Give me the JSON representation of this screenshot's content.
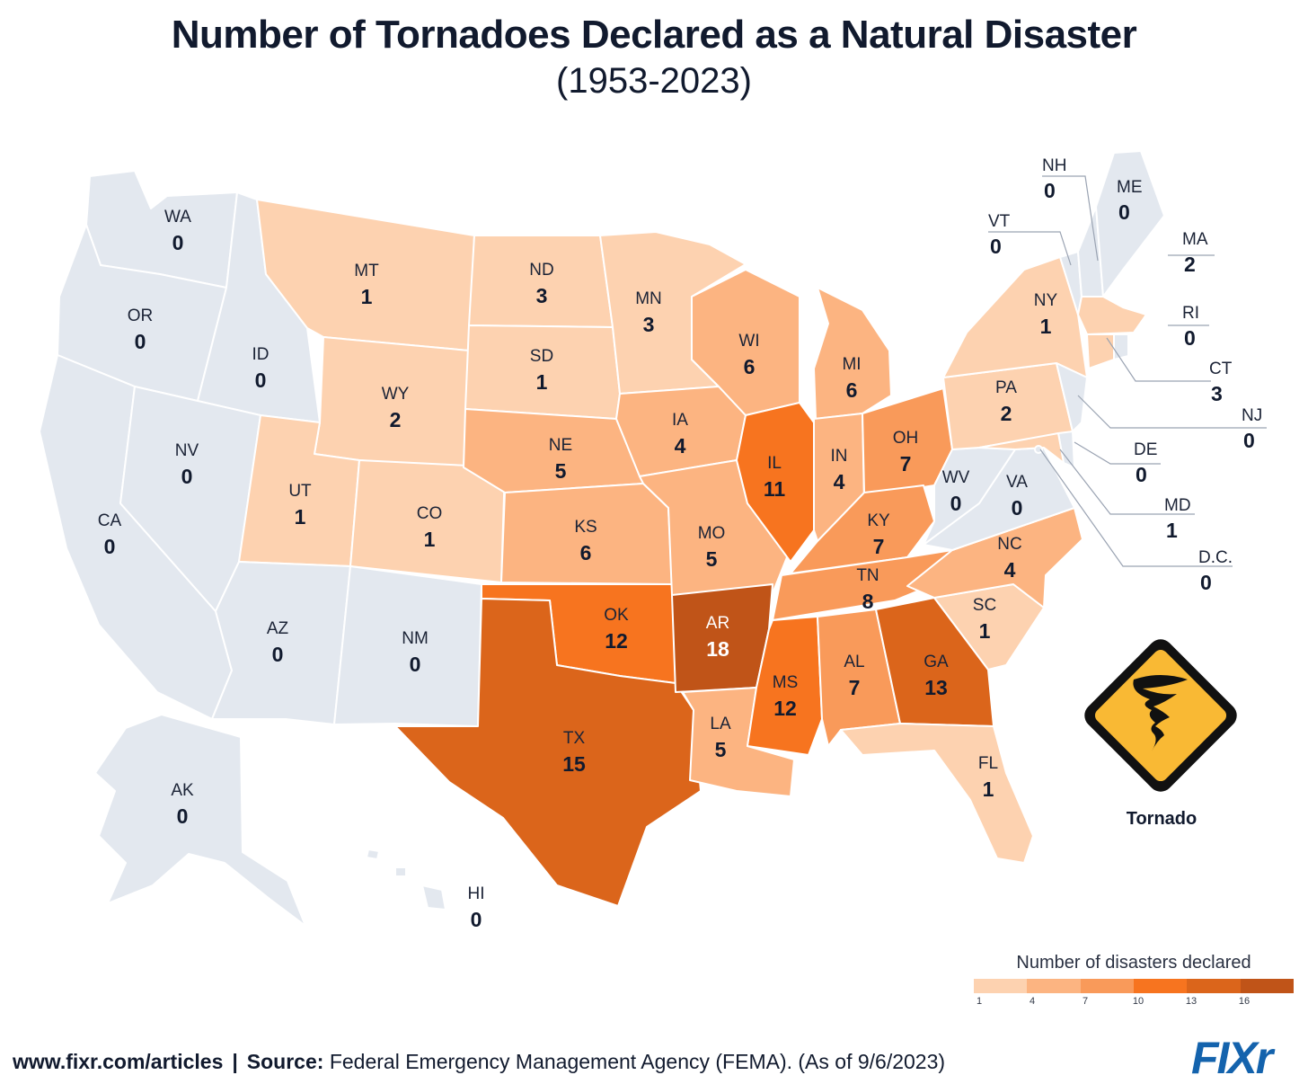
{
  "header": {
    "title": "Number of Tornadoes Declared as a Natural Disaster",
    "subtitle": "(1953-2023)"
  },
  "colors": {
    "zero": "#e3e8ef",
    "scale": [
      "#fdd2b0",
      "#fcb481",
      "#f99a5a",
      "#f7741f",
      "#db651b",
      "#c05418"
    ],
    "border": "#ffffff"
  },
  "states": {
    "WA": {
      "abbr": "WA",
      "value": "0"
    },
    "OR": {
      "abbr": "OR",
      "value": "0"
    },
    "CA": {
      "abbr": "CA",
      "value": "0"
    },
    "ID": {
      "abbr": "ID",
      "value": "0"
    },
    "NV": {
      "abbr": "NV",
      "value": "0"
    },
    "MT": {
      "abbr": "MT",
      "value": "1"
    },
    "WY": {
      "abbr": "WY",
      "value": "2"
    },
    "UT": {
      "abbr": "UT",
      "value": "1"
    },
    "CO": {
      "abbr": "CO",
      "value": "1"
    },
    "AZ": {
      "abbr": "AZ",
      "value": "0"
    },
    "NM": {
      "abbr": "NM",
      "value": "0"
    },
    "ND": {
      "abbr": "ND",
      "value": "3"
    },
    "SD": {
      "abbr": "SD",
      "value": "1"
    },
    "NE": {
      "abbr": "NE",
      "value": "5"
    },
    "KS": {
      "abbr": "KS",
      "value": "6"
    },
    "OK": {
      "abbr": "OK",
      "value": "12"
    },
    "TX": {
      "abbr": "TX",
      "value": "15"
    },
    "MN": {
      "abbr": "MN",
      "value": "3"
    },
    "IA": {
      "abbr": "IA",
      "value": "4"
    },
    "MO": {
      "abbr": "MO",
      "value": "5"
    },
    "AR": {
      "abbr": "AR",
      "value": "18"
    },
    "LA": {
      "abbr": "LA",
      "value": "5"
    },
    "WI": {
      "abbr": "WI",
      "value": "6"
    },
    "IL": {
      "abbr": "IL",
      "value": "11"
    },
    "MI": {
      "abbr": "MI",
      "value": "6"
    },
    "IN": {
      "abbr": "IN",
      "value": "4"
    },
    "OH": {
      "abbr": "OH",
      "value": "7"
    },
    "KY": {
      "abbr": "KY",
      "value": "7"
    },
    "TN": {
      "abbr": "TN",
      "value": "8"
    },
    "MS": {
      "abbr": "MS",
      "value": "12"
    },
    "AL": {
      "abbr": "AL",
      "value": "7"
    },
    "GA": {
      "abbr": "GA",
      "value": "13"
    },
    "FL": {
      "abbr": "FL",
      "value": "1"
    },
    "SC": {
      "abbr": "SC",
      "value": "1"
    },
    "NC": {
      "abbr": "NC",
      "value": "4"
    },
    "VA": {
      "abbr": "VA",
      "value": "0"
    },
    "WV": {
      "abbr": "WV",
      "value": "0"
    },
    "PA": {
      "abbr": "PA",
      "value": "2"
    },
    "NY": {
      "abbr": "NY",
      "value": "1"
    },
    "AK": {
      "abbr": "AK",
      "value": "0"
    },
    "HI": {
      "abbr": "HI",
      "value": "0"
    },
    "NH": {
      "abbr": "NH",
      "value": "0"
    },
    "ME": {
      "abbr": "ME",
      "value": "0"
    },
    "VT": {
      "abbr": "VT",
      "value": "0"
    },
    "MA": {
      "abbr": "MA",
      "value": "2"
    },
    "RI": {
      "abbr": "RI",
      "value": "0"
    },
    "CT": {
      "abbr": "CT",
      "value": "3"
    },
    "NJ": {
      "abbr": "NJ",
      "value": "0"
    },
    "DE": {
      "abbr": "DE",
      "value": "0"
    },
    "MD": {
      "abbr": "MD",
      "value": "1"
    },
    "DC": {
      "abbr": "D.C.",
      "value": "0"
    }
  },
  "legend": {
    "title": "Number of disasters declared",
    "ticks": [
      "1",
      "4",
      "7",
      "10",
      "13",
      "16"
    ]
  },
  "badge": {
    "icon": "tornado-warning-icon",
    "caption": "Tornado",
    "fill": "#f9b934"
  },
  "footer": {
    "site": "www.fixr.com/articles",
    "separator": "|",
    "source_label": "Source:",
    "source_text": "Federal Emergency Management Agency (FEMA). (As of 9/6/2023)"
  },
  "brand": {
    "logo": "FIXr"
  }
}
